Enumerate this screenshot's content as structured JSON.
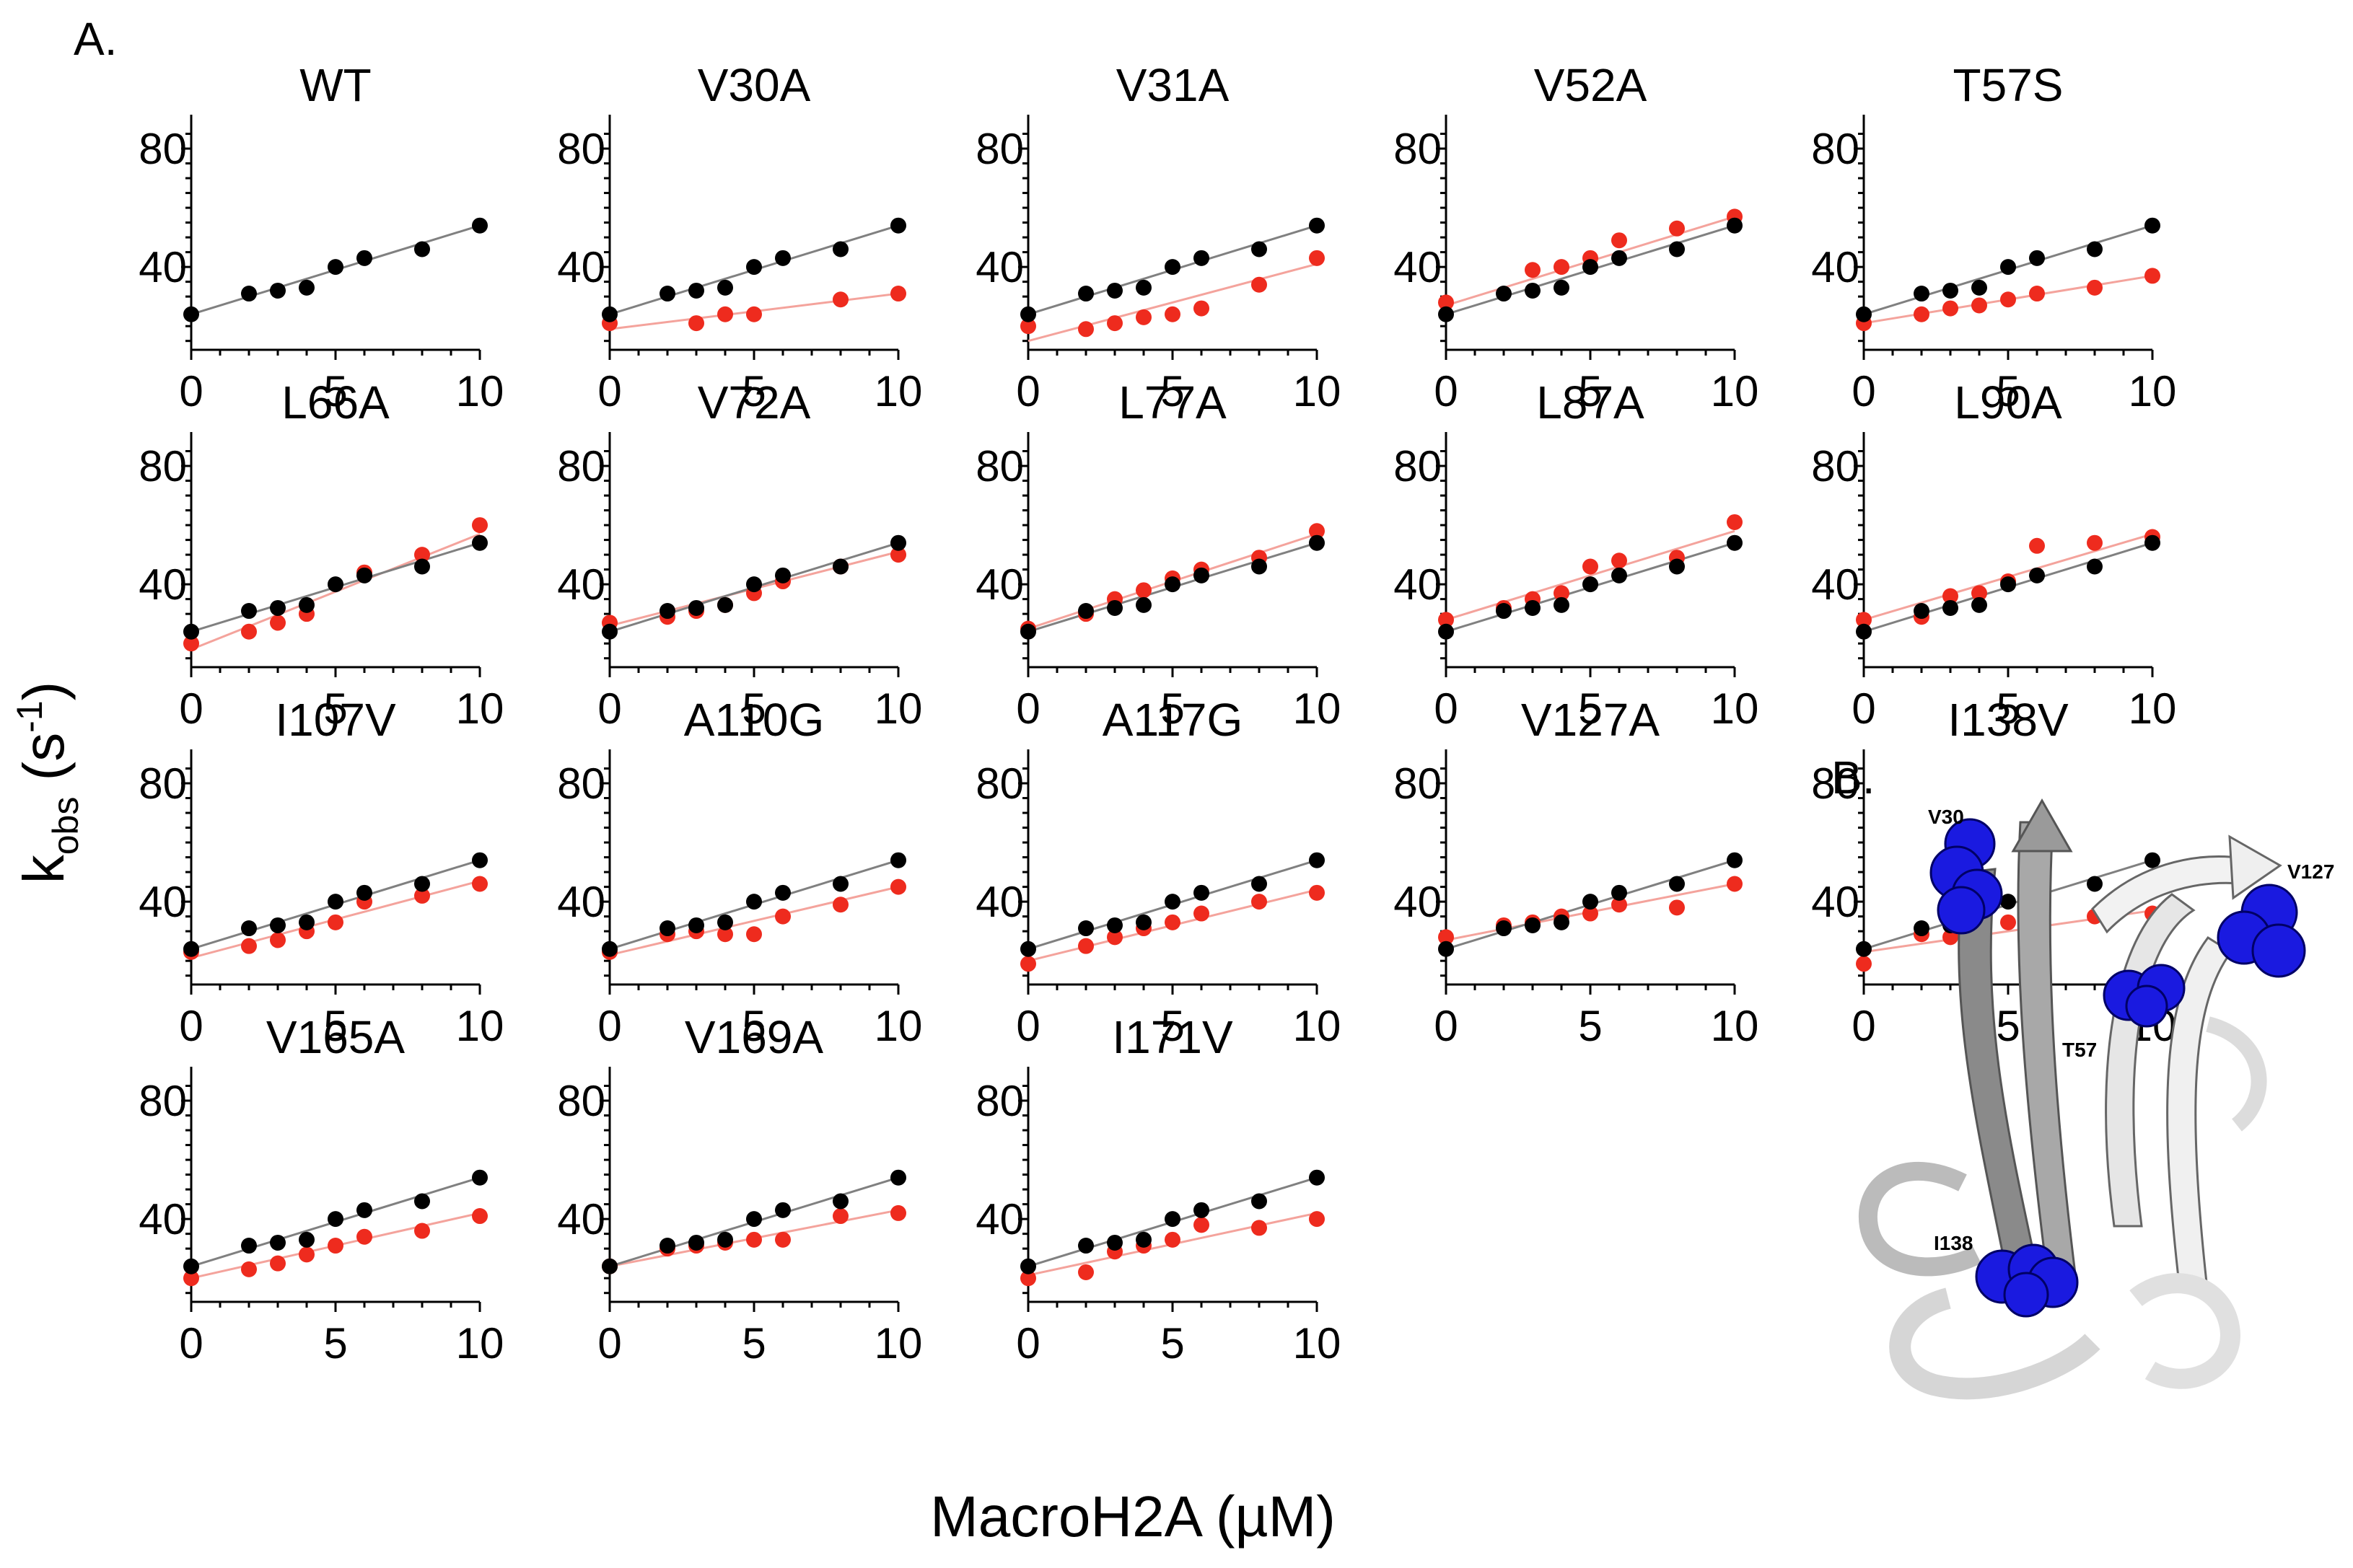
{
  "figure": {
    "panel_a_label": "A.",
    "panel_b_label": "B.",
    "y_axis_label_main": "k",
    "y_axis_label_sub": "obs",
    "y_axis_label_unit_open": " (s",
    "y_axis_label_exp": "-1",
    "y_axis_label_unit_close": ")",
    "x_axis_label": "MacroH2A (µM)"
  },
  "colors": {
    "wt": "#000000",
    "mutant": "#ee2b1e",
    "wt_fit": "#808080",
    "mutant_fit": "#f4a39c",
    "sphere": "#1a1ae0"
  },
  "structure": {
    "description_labels": [
      "V30",
      "V127",
      "T57",
      "I138"
    ]
  },
  "chart_data": {
    "type": "scatter",
    "xlim": [
      0,
      10
    ],
    "ylim": [
      12,
      90
    ],
    "xticks": [
      0,
      5,
      10
    ],
    "yticks": [
      40,
      80
    ],
    "wt_x": [
      0,
      2,
      3,
      4,
      5,
      6,
      8,
      10
    ],
    "wt_y": [
      24,
      31,
      32,
      33,
      40,
      43,
      46,
      54
    ],
    "wt_fit": [
      24,
      54
    ],
    "panels": [
      {
        "name": "WT",
        "mutant_x": [],
        "mutant_y": [],
        "fit": null
      },
      {
        "name": "V30A",
        "mutant_x": [
          0,
          3,
          4,
          5,
          8,
          10
        ],
        "mutant_y": [
          21,
          21,
          24,
          24,
          29,
          31
        ],
        "fit": [
          19,
          31
        ]
      },
      {
        "name": "V31A",
        "mutant_x": [
          0,
          2,
          3,
          4,
          5,
          6,
          8,
          10
        ],
        "mutant_y": [
          20,
          19,
          21,
          23,
          24,
          26,
          34,
          43
        ],
        "fit": [
          15,
          41
        ]
      },
      {
        "name": "V52A",
        "mutant_x": [
          0,
          3,
          4,
          5,
          6,
          8,
          10
        ],
        "mutant_y": [
          28,
          39,
          40,
          43,
          49,
          53,
          57
        ],
        "fit": [
          27,
          57
        ]
      },
      {
        "name": "T57S",
        "mutant_x": [
          0,
          2,
          3,
          4,
          5,
          6,
          8,
          10
        ],
        "mutant_y": [
          21,
          24,
          26,
          27,
          29,
          31,
          33,
          37
        ],
        "fit": [
          21,
          37
        ]
      },
      {
        "name": "L66A",
        "mutant_x": [
          0,
          2,
          3,
          4,
          6,
          8,
          10
        ],
        "mutant_y": [
          20,
          24,
          27,
          30,
          44,
          50,
          60
        ],
        "fit": [
          18,
          57
        ]
      },
      {
        "name": "V72A",
        "mutant_x": [
          0,
          2,
          3,
          4,
          5,
          6,
          8,
          10
        ],
        "mutant_y": [
          27,
          29,
          31,
          33,
          37,
          41,
          46,
          50
        ],
        "fit": [
          26,
          51
        ]
      },
      {
        "name": "L77A",
        "mutant_x": [
          0,
          2,
          3,
          4,
          5,
          6,
          8,
          10
        ],
        "mutant_y": [
          25,
          30,
          35,
          38,
          42,
          45,
          49,
          58
        ],
        "fit": [
          25,
          57
        ]
      },
      {
        "name": "L87A",
        "mutant_x": [
          0,
          2,
          3,
          4,
          5,
          6,
          8,
          10
        ],
        "mutant_y": [
          28,
          32,
          35,
          37,
          46,
          48,
          49,
          61
        ],
        "fit": [
          28,
          58
        ]
      },
      {
        "name": "L90A",
        "mutant_x": [
          0,
          2,
          3,
          4,
          5,
          6,
          8,
          10
        ],
        "mutant_y": [
          28,
          29,
          36,
          37,
          41,
          53,
          54,
          56
        ],
        "fit": [
          28,
          57
        ]
      },
      {
        "name": "I107V",
        "mutant_x": [
          0,
          2,
          3,
          4,
          5,
          6,
          8,
          10
        ],
        "mutant_y": [
          23,
          25,
          27,
          30,
          33,
          40,
          42,
          46
        ],
        "fit": [
          21,
          47
        ]
      },
      {
        "name": "A110G",
        "mutant_x": [
          0,
          2,
          3,
          4,
          5,
          6,
          8,
          10
        ],
        "mutant_y": [
          23,
          29,
          30,
          29,
          29,
          35,
          39,
          45
        ],
        "fit": [
          22,
          45
        ]
      },
      {
        "name": "A117G",
        "mutant_x": [
          0,
          2,
          3,
          4,
          5,
          6,
          8,
          10
        ],
        "mutant_y": [
          19,
          25,
          28,
          31,
          33,
          36,
          40,
          43
        ],
        "fit": [
          20,
          44
        ]
      },
      {
        "name": "V127A",
        "mutant_x": [
          0,
          2,
          3,
          4,
          5,
          6,
          8,
          10
        ],
        "mutant_y": [
          28,
          32,
          33,
          35,
          36,
          39,
          38,
          46
        ],
        "fit": [
          27,
          46
        ]
      },
      {
        "name": "I138V",
        "mutant_x": [
          0,
          2,
          3,
          4,
          5,
          6,
          8,
          10
        ],
        "mutant_y": [
          19,
          29,
          28,
          31,
          33,
          33,
          35,
          36
        ],
        "fit": [
          23,
          37
        ]
      },
      {
        "name": "V165A",
        "mutant_x": [
          0,
          2,
          3,
          4,
          5,
          6,
          8,
          10
        ],
        "mutant_y": [
          20,
          23,
          25,
          28,
          31,
          34,
          36,
          41
        ],
        "fit": [
          20,
          42
        ]
      },
      {
        "name": "V169A",
        "mutant_x": [
          0,
          2,
          3,
          4,
          5,
          6,
          8,
          10
        ],
        "mutant_y": [
          24,
          30,
          31,
          32,
          33,
          33,
          41,
          42
        ],
        "fit": [
          24,
          43
        ]
      },
      {
        "name": "I171V",
        "mutant_x": [
          0,
          2,
          3,
          4,
          5,
          6,
          8,
          10
        ],
        "mutant_y": [
          20,
          22,
          29,
          31,
          33,
          38,
          37,
          40
        ],
        "fit": [
          21,
          42
        ]
      }
    ]
  }
}
